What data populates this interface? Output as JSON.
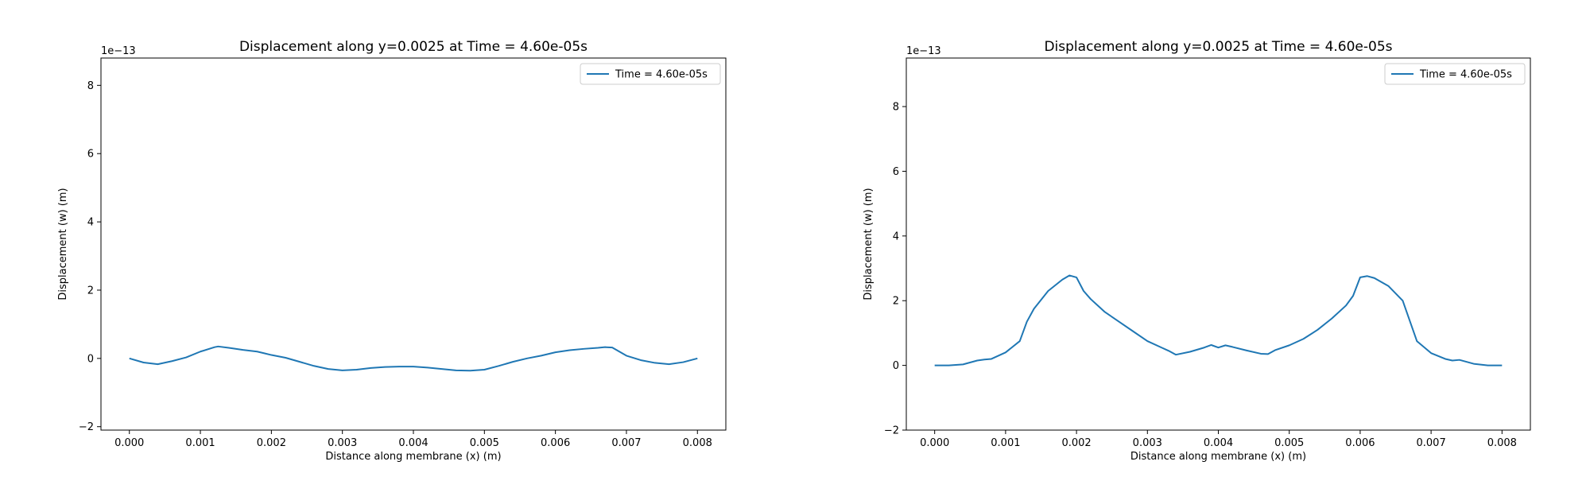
{
  "colors": {
    "line": "#1f77b4",
    "axes": "#000000",
    "legend_border": "#cccccc",
    "background": "#ffffff"
  },
  "chart_data": [
    {
      "type": "line",
      "title": "Displacement along y=0.0025 at Time = 4.60e-05s",
      "xlabel": "Distance along membrane (x) (m)",
      "ylabel": "Displacement (w) (m)",
      "y_offset_label": "1e−13",
      "xlim": [
        -0.0004,
        0.0084
      ],
      "ylim": [
        -2.1,
        8.8
      ],
      "xticks": [
        0.0,
        0.001,
        0.002,
        0.003,
        0.004,
        0.005,
        0.006,
        0.007,
        0.008
      ],
      "xtick_labels": [
        "0.000",
        "0.001",
        "0.002",
        "0.003",
        "0.004",
        "0.005",
        "0.006",
        "0.007",
        "0.008"
      ],
      "yticks": [
        -2,
        0,
        2,
        4,
        6,
        8
      ],
      "ytick_labels": [
        "−2",
        "0",
        "2",
        "4",
        "6",
        "8"
      ],
      "grid": false,
      "legend_position": "top-right",
      "series": [
        {
          "name": "Time = 4.60e-05s",
          "x": [
            0.0,
            0.0002,
            0.0004,
            0.0006,
            0.0008,
            0.001,
            0.0012,
            0.00125,
            0.0014,
            0.0016,
            0.0018,
            0.0019,
            0.002,
            0.0022,
            0.0024,
            0.0026,
            0.0028,
            0.003,
            0.0032,
            0.0034,
            0.0036,
            0.0038,
            0.004,
            0.0042,
            0.0044,
            0.0046,
            0.0048,
            0.005,
            0.0052,
            0.0054,
            0.0056,
            0.0058,
            0.006,
            0.0062,
            0.0064,
            0.0066,
            0.0067,
            0.0068,
            0.007,
            0.0072,
            0.0074,
            0.0076,
            0.0078,
            0.008
          ],
          "y": [
            0.0,
            -0.12,
            -0.17,
            -0.08,
            0.03,
            0.2,
            0.33,
            0.35,
            0.31,
            0.25,
            0.2,
            0.15,
            0.1,
            0.02,
            -0.1,
            -0.22,
            -0.31,
            -0.35,
            -0.33,
            -0.28,
            -0.25,
            -0.24,
            -0.24,
            -0.27,
            -0.31,
            -0.35,
            -0.36,
            -0.33,
            -0.22,
            -0.1,
            0.0,
            0.08,
            0.18,
            0.24,
            0.28,
            0.31,
            0.33,
            0.32,
            0.08,
            -0.05,
            -0.13,
            -0.17,
            -0.11,
            0.0
          ]
        }
      ]
    },
    {
      "type": "line",
      "title": "Displacement along y=0.0025 at Time = 4.60e-05s",
      "xlabel": "Distance along membrane (x) (m)",
      "ylabel": "Displacement (w) (m)",
      "y_offset_label": "1e−13",
      "xlim": [
        -0.0004,
        0.0084
      ],
      "ylim": [
        -2.0,
        9.5
      ],
      "xticks": [
        0.0,
        0.001,
        0.002,
        0.003,
        0.004,
        0.005,
        0.006,
        0.007,
        0.008
      ],
      "xtick_labels": [
        "0.000",
        "0.001",
        "0.002",
        "0.003",
        "0.004",
        "0.005",
        "0.006",
        "0.007",
        "0.008"
      ],
      "yticks": [
        -2,
        0,
        2,
        4,
        6,
        8
      ],
      "ytick_labels": [
        "−2",
        "0",
        "2",
        "4",
        "6",
        "8"
      ],
      "grid": false,
      "legend_position": "top-right",
      "series": [
        {
          "name": "Time = 4.60e-05s",
          "x": [
            0.0,
            0.0002,
            0.0004,
            0.0006,
            0.0007,
            0.0008,
            0.001,
            0.0012,
            0.0013,
            0.0014,
            0.0016,
            0.0018,
            0.0019,
            0.002,
            0.0021,
            0.0022,
            0.0024,
            0.0026,
            0.0028,
            0.003,
            0.0032,
            0.0033,
            0.0034,
            0.0036,
            0.0038,
            0.0039,
            0.004,
            0.0041,
            0.0042,
            0.0044,
            0.0046,
            0.0047,
            0.0048,
            0.005,
            0.0052,
            0.0054,
            0.0056,
            0.0058,
            0.0059,
            0.006,
            0.0061,
            0.0062,
            0.0064,
            0.0066,
            0.0068,
            0.007,
            0.0072,
            0.0073,
            0.0074,
            0.0076,
            0.0078,
            0.008
          ],
          "y": [
            0.0,
            0.0,
            0.03,
            0.15,
            0.18,
            0.2,
            0.4,
            0.75,
            1.35,
            1.75,
            2.3,
            2.65,
            2.78,
            2.72,
            2.3,
            2.05,
            1.65,
            1.35,
            1.05,
            0.75,
            0.55,
            0.45,
            0.33,
            0.42,
            0.55,
            0.63,
            0.55,
            0.62,
            0.57,
            0.46,
            0.36,
            0.35,
            0.47,
            0.62,
            0.82,
            1.1,
            1.45,
            1.85,
            2.15,
            2.72,
            2.76,
            2.7,
            2.45,
            2.0,
            0.75,
            0.38,
            0.2,
            0.15,
            0.17,
            0.05,
            0.0,
            0.0
          ]
        }
      ]
    }
  ]
}
